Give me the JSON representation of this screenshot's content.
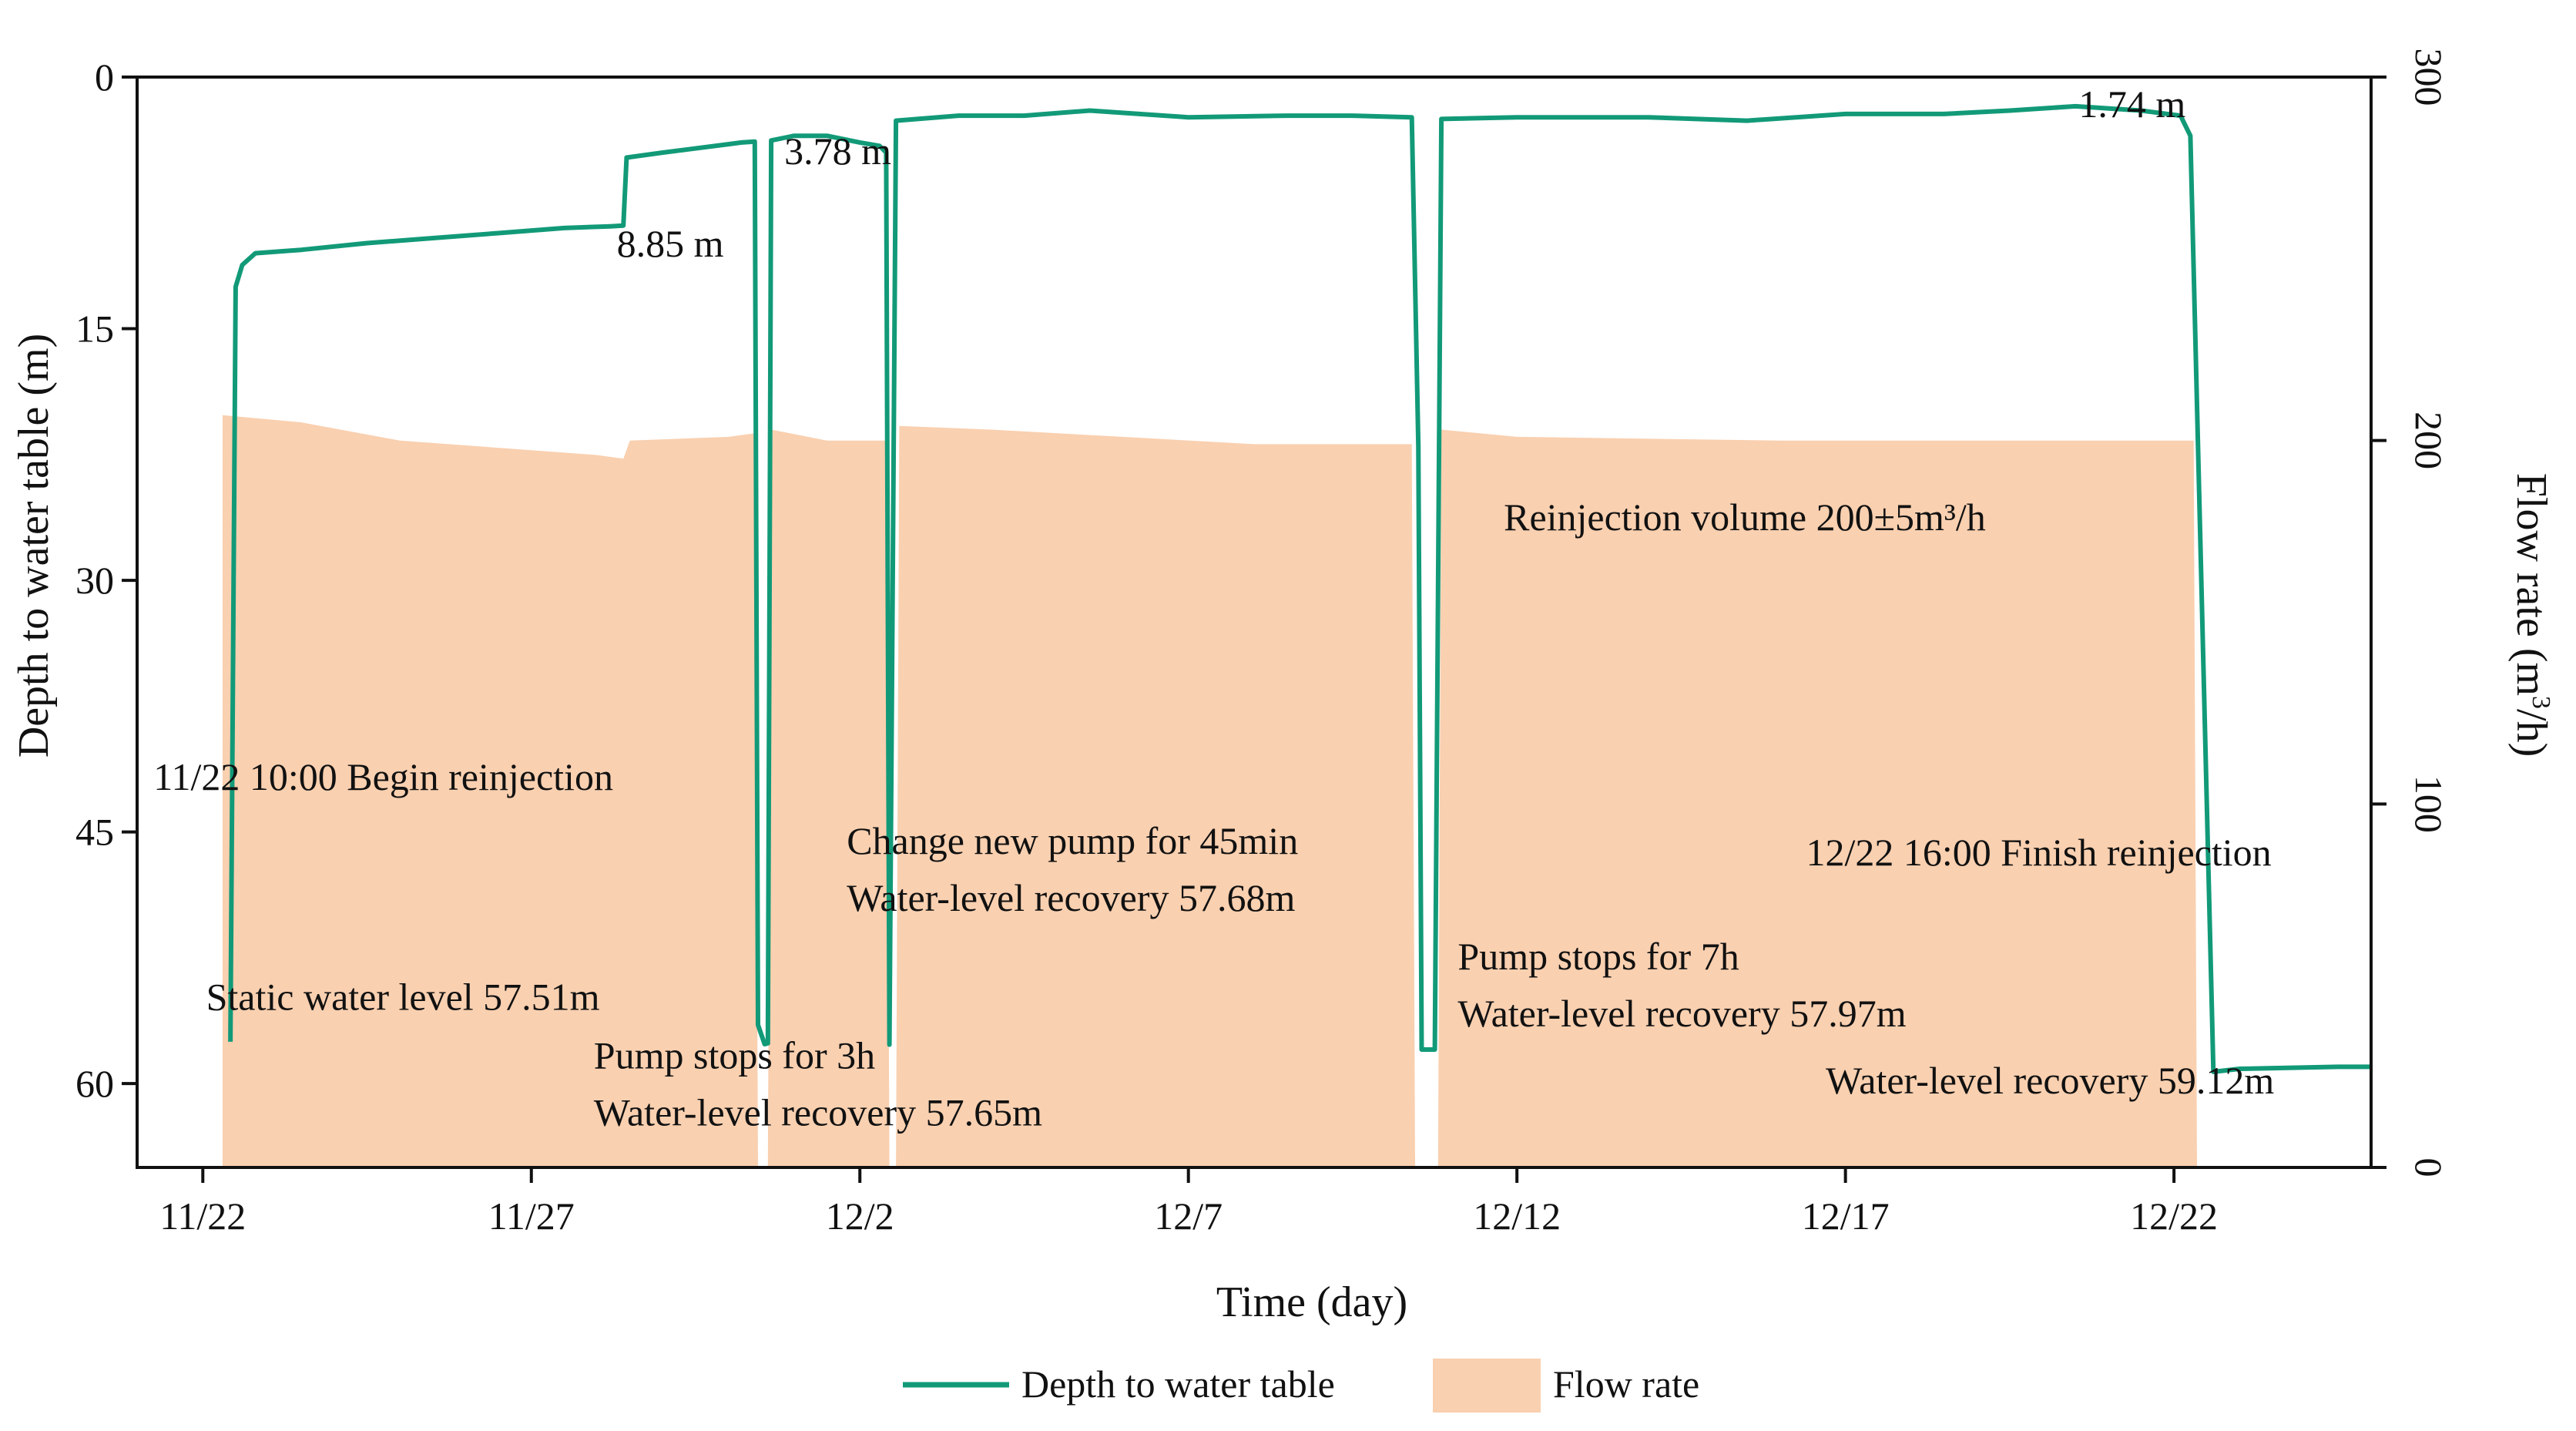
{
  "chart_data": {
    "type": "line",
    "colors": {
      "depth": "#129a78",
      "flow": "#f9d0b0",
      "axis": "#111111"
    },
    "xlabel": "Time (day)",
    "ylabel_left": "Depth to water table (m)",
    "ylabel_right_prefix": "Flow rate (m",
    "ylabel_right_sup": "3",
    "ylabel_right_suffix": "/h)",
    "x_range": [
      -1,
      33
    ],
    "y_left_range": [
      0,
      65
    ],
    "y_right_range": [
      0,
      300
    ],
    "x_ticks": [
      {
        "value": 0,
        "label": "11/22"
      },
      {
        "value": 5,
        "label": "11/27"
      },
      {
        "value": 10,
        "label": "12/2"
      },
      {
        "value": 15,
        "label": "12/7"
      },
      {
        "value": 20,
        "label": "12/12"
      },
      {
        "value": 25,
        "label": "12/17"
      },
      {
        "value": 30,
        "label": "12/22"
      }
    ],
    "y_left_ticks": [
      {
        "value": 0,
        "label": "0"
      },
      {
        "value": 15,
        "label": "15"
      },
      {
        "value": 30,
        "label": "30"
      },
      {
        "value": 45,
        "label": "45"
      },
      {
        "value": 60,
        "label": "60"
      }
    ],
    "y_right_ticks": [
      {
        "value": 0,
        "label": "0"
      },
      {
        "value": 100,
        "label": "100"
      },
      {
        "value": 200,
        "label": "200"
      },
      {
        "value": 300,
        "label": "300"
      }
    ],
    "series": [
      {
        "name": "Depth to water table",
        "axis": "left",
        "points": [
          [
            0.42,
            57.51
          ],
          [
            0.5,
            12.5
          ],
          [
            0.6,
            11.2
          ],
          [
            0.8,
            10.5
          ],
          [
            1.5,
            10.3
          ],
          [
            2.5,
            9.9
          ],
          [
            3.5,
            9.6
          ],
          [
            4.5,
            9.3
          ],
          [
            5.5,
            9.0
          ],
          [
            6.2,
            8.9
          ],
          [
            6.4,
            8.85
          ],
          [
            6.45,
            4.8
          ],
          [
            7.0,
            4.5
          ],
          [
            8.0,
            4.0
          ],
          [
            8.2,
            3.9
          ],
          [
            8.4,
            3.85
          ],
          [
            8.45,
            56.5
          ],
          [
            8.55,
            57.65
          ],
          [
            8.6,
            57.6
          ],
          [
            8.65,
            3.78
          ],
          [
            9.0,
            3.5
          ],
          [
            9.5,
            3.5
          ],
          [
            10.0,
            3.9
          ],
          [
            10.3,
            4.1
          ],
          [
            10.4,
            4.5
          ],
          [
            10.45,
            57.68
          ],
          [
            10.55,
            2.6
          ],
          [
            11.5,
            2.3
          ],
          [
            12.5,
            2.3
          ],
          [
            13.5,
            2.0
          ],
          [
            15.0,
            2.4
          ],
          [
            16.5,
            2.3
          ],
          [
            17.5,
            2.3
          ],
          [
            18.4,
            2.4
          ],
          [
            18.5,
            22.0
          ],
          [
            18.55,
            57.97
          ],
          [
            18.75,
            57.97
          ],
          [
            18.85,
            2.5
          ],
          [
            20.0,
            2.4
          ],
          [
            22.0,
            2.4
          ],
          [
            23.5,
            2.6
          ],
          [
            25.0,
            2.2
          ],
          [
            26.5,
            2.2
          ],
          [
            27.5,
            2.0
          ],
          [
            28.5,
            1.74
          ],
          [
            29.5,
            2.0
          ],
          [
            30.1,
            2.3
          ],
          [
            30.25,
            3.5
          ],
          [
            30.6,
            59.3
          ],
          [
            31.0,
            59.12
          ],
          [
            32.5,
            59.0
          ],
          [
            33.0,
            59.0
          ]
        ]
      },
      {
        "name": "Flow rate",
        "axis": "right",
        "points": [
          [
            0.3,
            0
          ],
          [
            0.3,
            207
          ],
          [
            1.5,
            205
          ],
          [
            3.0,
            200
          ],
          [
            4.5,
            198
          ],
          [
            6.0,
            196
          ],
          [
            6.4,
            195
          ],
          [
            6.5,
            200
          ],
          [
            8.0,
            201
          ],
          [
            8.4,
            202
          ],
          [
            8.45,
            0
          ],
          [
            8.6,
            0
          ],
          [
            8.65,
            203
          ],
          [
            9.5,
            200
          ],
          [
            10.4,
            200
          ],
          [
            10.45,
            0
          ],
          [
            10.55,
            0
          ],
          [
            10.6,
            204
          ],
          [
            12.0,
            203
          ],
          [
            14.0,
            201
          ],
          [
            16.0,
            199
          ],
          [
            18.4,
            199
          ],
          [
            18.45,
            0
          ],
          [
            18.8,
            0
          ],
          [
            18.85,
            203
          ],
          [
            20.0,
            201
          ],
          [
            24.0,
            200
          ],
          [
            28.0,
            200
          ],
          [
            30.3,
            200
          ],
          [
            30.35,
            0
          ]
        ]
      }
    ],
    "annotations": [
      {
        "text": "8.85 m",
        "x": 6.3,
        "y": 10.7,
        "anchor": "start"
      },
      {
        "text": "3.78 m",
        "x": 8.85,
        "y": 5.2,
        "anchor": "start"
      },
      {
        "text": "1.74 m",
        "x": 28.55,
        "y": 2.4,
        "anchor": "start"
      },
      {
        "text": "Reinjection volume 200±5m³/h",
        "x": 19.8,
        "y": 27.0,
        "anchor": "start"
      },
      {
        "text": "11/22 10:00 Begin reinjection",
        "x": -0.75,
        "y": 42.5,
        "anchor": "start"
      },
      {
        "text": "Change new pump for 45min",
        "x": 9.8,
        "y": 46.3,
        "anchor": "start"
      },
      {
        "text": "Water-level recovery 57.68m",
        "x": 9.8,
        "y": 49.7,
        "anchor": "start"
      },
      {
        "text": "12/22 16:00 Finish reinjection",
        "x": 24.4,
        "y": 47.0,
        "anchor": "start"
      },
      {
        "text": "Pump stops for 7h",
        "x": 19.1,
        "y": 53.2,
        "anchor": "start"
      },
      {
        "text": "Water-level recovery 57.97m",
        "x": 19.1,
        "y": 56.6,
        "anchor": "start"
      },
      {
        "text": "Static water level 57.51m",
        "x": 0.05,
        "y": 55.6,
        "anchor": "start"
      },
      {
        "text": "Pump stops for 3h",
        "x": 5.95,
        "y": 59.1,
        "anchor": "start"
      },
      {
        "text": "Water-level recovery 57.65m",
        "x": 5.95,
        "y": 62.5,
        "anchor": "start"
      },
      {
        "text": "Water-level recovery 59.12m",
        "x": 24.7,
        "y": 60.6,
        "anchor": "start"
      }
    ],
    "legend": {
      "position": "bottom",
      "items": [
        {
          "label": "Depth to water table",
          "kind": "line"
        },
        {
          "label": "Flow rate",
          "kind": "patch"
        }
      ]
    }
  }
}
